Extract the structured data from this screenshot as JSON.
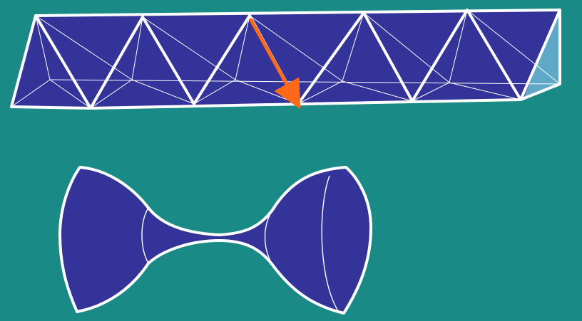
{
  "colors": {
    "background": "#1a8a86",
    "face": "#333399",
    "end_face": "#5fa8c8",
    "edge": "#ffffff",
    "highlight_arrow": "#ff6a1a"
  },
  "diagram": {
    "upper_figure": "triangulated-prism-strip",
    "lower_figure": "two-bells-joined-by-thin-neck",
    "arrow_marker": "arrowhead"
  }
}
